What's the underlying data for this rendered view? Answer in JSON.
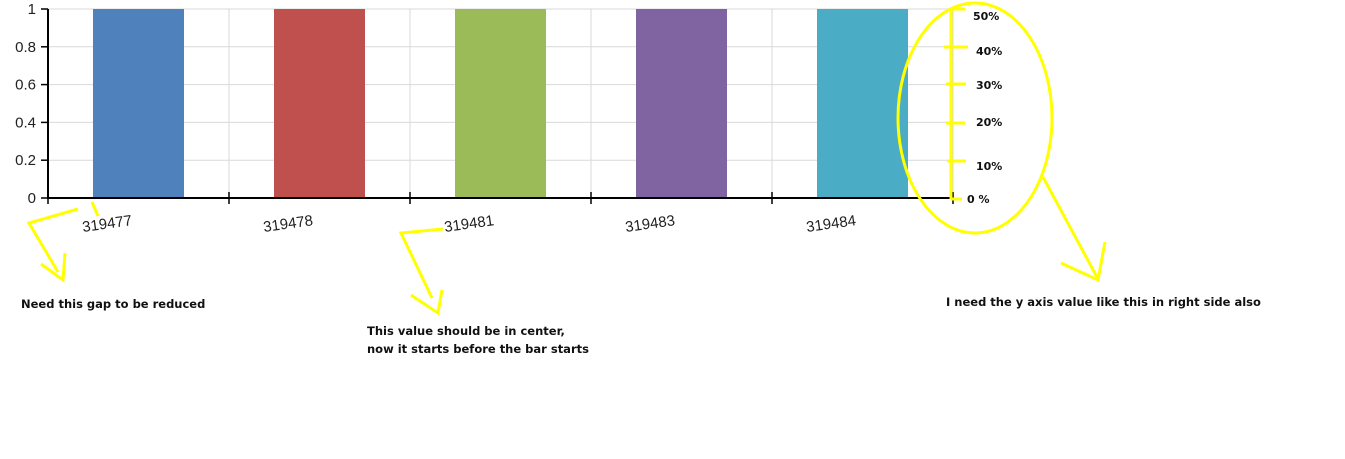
{
  "chart_data": {
    "type": "bar",
    "categories": [
      "319477",
      "319478",
      "319481",
      "319483",
      "319484"
    ],
    "values": [
      1,
      1,
      1,
      1,
      1
    ],
    "colors": [
      "#4f81bd",
      "#c0504d",
      "#9bbb59",
      "#8064a2",
      "#4bacc6"
    ],
    "ylim": [
      0,
      1
    ],
    "yticks": [
      "0",
      "0.2",
      "0.4",
      "0.6",
      "0.8",
      "1"
    ],
    "grid": true,
    "title": "",
    "xlabel": "",
    "ylabel": ""
  },
  "annotations": {
    "color": "#ffff00",
    "right_axis_ticks": [
      "0 %",
      "10%",
      "20%",
      "30%",
      "40%",
      "50%"
    ],
    "gap_note": "Need this gap to be reduced",
    "center_note_line1": "This value should be in center,",
    "center_note_line2": "now it starts before the bar starts",
    "right_axis_note": "I need the y axis value like this in right side also"
  }
}
